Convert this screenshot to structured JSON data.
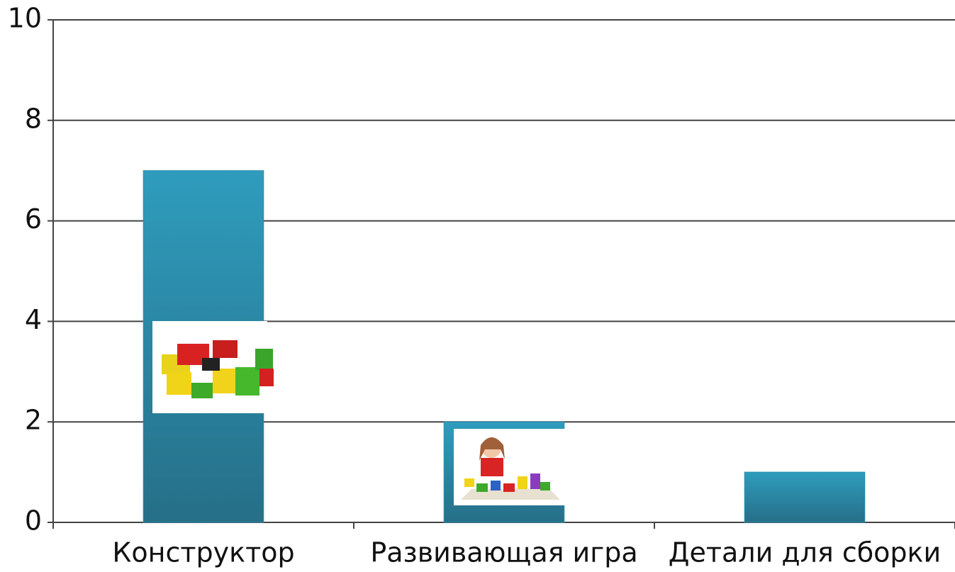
{
  "chart_data": {
    "type": "bar",
    "categories": [
      "Конструктор",
      "Развивающая игра",
      "Детали для сборки"
    ],
    "values": [
      7,
      2,
      1
    ],
    "color": "#2b8fad",
    "ylim": [
      0,
      10
    ],
    "yticks": [
      0,
      2,
      4,
      6,
      8,
      10
    ],
    "grid": true
  }
}
